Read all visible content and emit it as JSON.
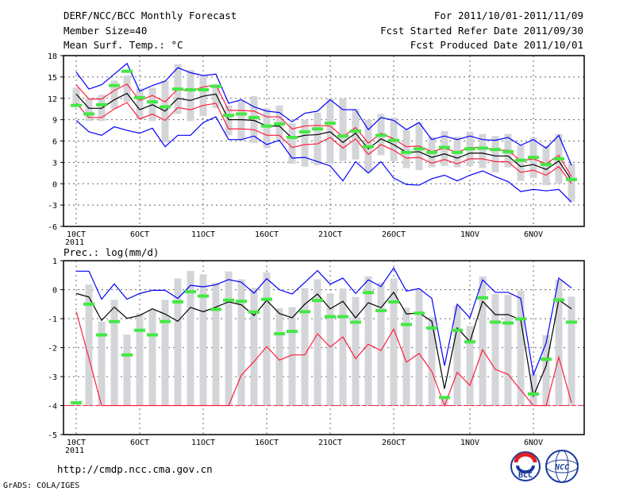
{
  "header": {
    "title": "DERF/NCC/BCC Monthly Forecast",
    "member_size": "Member Size=40",
    "variable": "Mean Surf. Temp.: °C",
    "period": "For 2011/10/01-2011/11/09",
    "start_date": "Fcst Started Refer Date 2011/09/30",
    "produced_date": "Fcst Produced Date 2011/10/01"
  },
  "footer": {
    "url": "http://cmdp.ncc.cma.gov.cn",
    "grads": "GrADS: COLA/IGES",
    "logo_bcc": "BCC",
    "logo_ncc": "NCC"
  },
  "colors": {
    "max_min": "#0000ff",
    "mean": "#000000",
    "spread": "#ff1f3f",
    "observed": "#44e844",
    "box": "#d4d5d9",
    "grid": "#666666"
  },
  "chart_data": [
    {
      "type": "line",
      "title": "Mean Surf. Temp.: °C",
      "x_ticks": [
        "10CT",
        "6OCT",
        "11OCT",
        "16OCT",
        "21OCT",
        "26OCT",
        "1NOV",
        "6NOV"
      ],
      "x_tick_days": [
        0,
        5,
        10,
        15,
        20,
        25,
        31,
        36
      ],
      "x_year": "2011",
      "ylim": [
        -6,
        18
      ],
      "y_ticks": [
        18,
        15,
        12,
        9,
        6,
        3,
        0,
        -3,
        -6
      ],
      "grid": true,
      "days": 40,
      "series": [
        {
          "name": "box_high",
          "values": [
            13.5,
            12,
            12.5,
            14.5,
            15.2,
            13.4,
            13.5,
            14.5,
            16.8,
            16,
            15.2,
            13.8,
            11,
            11.6,
            12.3,
            10.6,
            11,
            8.5,
            9,
            10,
            12,
            12,
            10.5,
            9,
            9.8,
            9.3,
            7.6,
            8.6,
            6.6,
            7.4,
            6.6,
            7.3,
            7,
            6.7,
            7,
            5.4,
            6.5,
            5.3,
            7,
            2.8
          ]
        },
        {
          "name": "box_low",
          "values": [
            11,
            8.8,
            8.8,
            10.5,
            11.5,
            9,
            8.8,
            5.8,
            9.8,
            8.8,
            9.5,
            10.6,
            6.8,
            6,
            5.7,
            5,
            6.1,
            2.8,
            2.4,
            2.6,
            2.8,
            3.2,
            3.4,
            1.6,
            4,
            3.2,
            2.2,
            1.9,
            2.3,
            2.5,
            2.3,
            2.5,
            2.2,
            1.6,
            2.3,
            0.4,
            0.8,
            -0.2,
            0,
            -2.5
          ]
        },
        {
          "name": "max",
          "values": [
            15.7,
            13.3,
            13.9,
            15.4,
            16.9,
            13.0,
            13.8,
            14.4,
            16.3,
            15.6,
            15.2,
            15.4,
            11.3,
            11.8,
            10.8,
            10.2,
            10.0,
            8.7,
            9.9,
            10.2,
            11.8,
            10.4,
            10.4,
            7.6,
            9.3,
            8.9,
            7.6,
            8.6,
            6.2,
            6.7,
            6.2,
            6.7,
            6.2,
            6.1,
            6.5,
            5.4,
            6.2,
            5.0,
            6.8,
            2.6
          ]
        },
        {
          "name": "min",
          "values": [
            8.9,
            7.3,
            6.8,
            8.0,
            7.5,
            7.1,
            7.8,
            5.2,
            6.8,
            6.8,
            8.6,
            9.4,
            6.2,
            6.2,
            6.7,
            5.5,
            6.1,
            3.6,
            3.7,
            3.1,
            2.5,
            0.4,
            3.1,
            1.5,
            3.1,
            0.8,
            -0.1,
            -0.2,
            0.7,
            1.2,
            0.4,
            1.2,
            1.8,
            1.0,
            0.3,
            -1.1,
            -0.8,
            -1.0,
            -0.8,
            -2.6
          ]
        },
        {
          "name": "upper",
          "values": [
            13.9,
            11.9,
            11.9,
            13.1,
            14.0,
            11.7,
            12.4,
            11.5,
            13.3,
            13.0,
            13.6,
            13.9,
            10.3,
            10.3,
            10.2,
            9.4,
            9.4,
            7.7,
            8.1,
            8.2,
            8.1,
            6.6,
            7.9,
            5.7,
            7.1,
            6.3,
            5.2,
            5.3,
            4.5,
            5.0,
            4.4,
            5.1,
            5.1,
            4.7,
            4.7,
            3.2,
            3.5,
            2.8,
            4.0,
            1.0
          ]
        },
        {
          "name": "lower",
          "values": [
            11.3,
            9.3,
            9.3,
            10.5,
            11.4,
            9.1,
            9.8,
            8.9,
            10.7,
            10.4,
            11.0,
            11.3,
            7.7,
            7.7,
            7.6,
            6.8,
            6.8,
            5.1,
            5.5,
            5.6,
            6.5,
            5.0,
            6.3,
            4.1,
            5.5,
            4.7,
            3.6,
            3.7,
            2.9,
            3.4,
            2.8,
            3.5,
            3.5,
            3.1,
            3.1,
            1.6,
            1.9,
            1.2,
            2.4,
            0.0
          ]
        },
        {
          "name": "mean",
          "values": [
            12.6,
            10.6,
            10.6,
            11.8,
            12.7,
            10.4,
            11.1,
            10.2,
            12.0,
            11.7,
            12.3,
            12.6,
            9.0,
            9.0,
            8.9,
            8.1,
            8.1,
            6.4,
            6.8,
            6.9,
            7.3,
            5.8,
            7.1,
            4.9,
            6.3,
            5.5,
            4.4,
            4.5,
            3.7,
            4.2,
            3.6,
            4.3,
            4.3,
            3.9,
            3.9,
            2.4,
            2.7,
            2.0,
            3.2,
            0.5
          ]
        },
        {
          "name": "observed",
          "values": [
            11.0,
            9.8,
            11.1,
            13.8,
            15.8,
            12.1,
            11.5,
            10.8,
            13.3,
            13.2,
            13.2,
            13.7,
            9.6,
            9.8,
            9.3,
            8.1,
            8.4,
            6.5,
            7.3,
            7.7,
            8.5,
            6.7,
            7.4,
            5.2,
            6.8,
            6.1,
            4.4,
            4.9,
            4.4,
            5.1,
            4.4,
            4.9,
            5.0,
            4.8,
            4.5,
            3.3,
            3.7,
            2.7,
            3.5,
            0.6
          ]
        }
      ]
    },
    {
      "type": "line",
      "title": "Prec.: log(mm/d)",
      "x_ticks": [
        "10CT",
        "6OCT",
        "11OCT",
        "16OCT",
        "21OCT",
        "26OCT",
        "1NOV",
        "6NOV"
      ],
      "x_tick_days": [
        0,
        5,
        10,
        15,
        20,
        25,
        31,
        36
      ],
      "x_year": "2011",
      "ylim": [
        -5,
        1
      ],
      "y_ticks": [
        1,
        0,
        -1,
        -2,
        -3,
        -4,
        -5
      ],
      "grid": true,
      "days": 40,
      "series": [
        {
          "name": "box_high",
          "values": [
            -3.95,
            0.18,
            -1.1,
            -0.35,
            -1.55,
            -0.8,
            -0.7,
            -0.35,
            0.39,
            0.65,
            0.53,
            0.24,
            0.63,
            0.36,
            0.06,
            0.6,
            -0.64,
            -0.6,
            0.06,
            0.36,
            -0.13,
            0.04,
            -0.25,
            0.46,
            0.24,
            0.39,
            -0.62,
            0.02,
            -0.95,
            -3.7,
            -0.55,
            -1.25,
            0.46,
            -0.15,
            -0.18,
            -0.03,
            -2.9,
            -1.57,
            0.34,
            -0.24
          ]
        },
        {
          "name": "max",
          "values": [
            0.64,
            0.64,
            -0.33,
            0.2,
            -0.33,
            -0.13,
            -0.02,
            -0.02,
            -0.3,
            0.15,
            0.1,
            0.17,
            0.35,
            0.26,
            -0.12,
            0.38,
            0,
            -0.15,
            0.25,
            0.66,
            0.19,
            0.4,
            -0.13,
            0.34,
            0.11,
            0.75,
            -0.05,
            0.04,
            -0.3,
            -2.62,
            -0.5,
            -0.97,
            0.34,
            -0.09,
            -0.09,
            -0.3,
            -2.94,
            -1.84,
            0.4,
            0.06
          ]
        },
        {
          "name": "mean",
          "values": [
            -0.13,
            -0.25,
            -1.06,
            -0.6,
            -0.99,
            -0.89,
            -0.66,
            -0.84,
            -1.09,
            -0.61,
            -0.76,
            -0.6,
            -0.42,
            -0.52,
            -0.89,
            -0.37,
            -0.82,
            -0.97,
            -0.5,
            -0.15,
            -0.66,
            -0.4,
            -0.97,
            -0.45,
            -0.62,
            -0.09,
            -0.84,
            -0.8,
            -1.09,
            -3.42,
            -1.32,
            -1.79,
            -0.4,
            -0.86,
            -0.86,
            -1.04,
            -3.67,
            -2.63,
            -0.35,
            -0.66
          ]
        },
        {
          "name": "min",
          "values": [
            -0.75,
            -2.36,
            -4,
            -4,
            -4,
            -4,
            -4,
            -4,
            -4,
            -4,
            -4,
            -4,
            -4,
            -2.95,
            -2.48,
            -1.96,
            -2.43,
            -2.25,
            -2.25,
            -1.52,
            -1.98,
            -1.63,
            -2.38,
            -1.88,
            -2.1,
            -1.36,
            -2.5,
            -2.2,
            -2.82,
            -4,
            -2.85,
            -3.3,
            -2.07,
            -2.75,
            -2.92,
            -3.46,
            -4,
            -4,
            -2.33,
            -3.9
          ]
        },
        {
          "name": "observed",
          "values": [
            -3.9,
            -0.5,
            -1.56,
            -1.1,
            -2.25,
            -1.4,
            -1.56,
            -1.1,
            -0.42,
            -0.07,
            -0.22,
            -0.68,
            -0.36,
            -0.4,
            -0.77,
            -0.33,
            -1.52,
            -1.44,
            -0.76,
            -0.37,
            -0.93,
            -0.93,
            -1.12,
            -0.1,
            -0.72,
            -0.42,
            -1.2,
            -0.81,
            -1.32,
            -3.72,
            -1.4,
            -1.8,
            -0.28,
            -1.12,
            -1.15,
            -1.01,
            -3.6,
            -2.4,
            -0.35,
            -1.12
          ]
        }
      ]
    }
  ]
}
